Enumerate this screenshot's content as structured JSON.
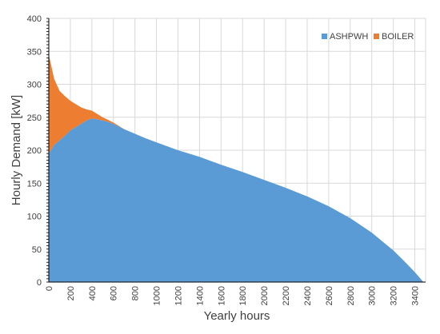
{
  "chart_data": {
    "type": "area",
    "xlabel": "Yearly hours",
    "ylabel": "Hourly Demand [kW]",
    "xlim": [
      0,
      3500
    ],
    "ylim": [
      0,
      400
    ],
    "x_ticks": [
      0,
      200,
      400,
      600,
      800,
      1000,
      1200,
      1400,
      1600,
      1800,
      2000,
      2200,
      2400,
      2600,
      2800,
      3000,
      3200,
      3400
    ],
    "y_ticks": [
      0,
      50,
      100,
      150,
      200,
      250,
      300,
      350,
      400
    ],
    "grid": true,
    "legend_position": "top-right",
    "stacking": "stacked",
    "x": [
      0,
      50,
      100,
      150,
      200,
      250,
      300,
      350,
      400,
      450,
      500,
      550,
      600,
      700,
      800,
      900,
      1000,
      1200,
      1400,
      1600,
      1800,
      2000,
      2200,
      2400,
      2600,
      2800,
      3000,
      3200,
      3300,
      3400,
      3480
    ],
    "series": [
      {
        "name": "ASHPWH",
        "color": "#5B9BD5",
        "values": [
          195,
          208,
          215,
          222,
          230,
          235,
          240,
          245,
          248,
          247,
          245,
          243,
          240,
          232,
          225,
          218,
          212,
          200,
          190,
          178,
          167,
          155,
          143,
          130,
          115,
          97,
          75,
          48,
          32,
          15,
          0
        ]
      },
      {
        "name": "BOILER",
        "color": "#ED7D31",
        "values": [
          150,
          100,
          75,
          60,
          45,
          35,
          25,
          17,
          12,
          8,
          5,
          3,
          2,
          0,
          0,
          0,
          0,
          0,
          0,
          0,
          0,
          0,
          0,
          0,
          0,
          0,
          0,
          0,
          0,
          0,
          0
        ]
      }
    ]
  }
}
